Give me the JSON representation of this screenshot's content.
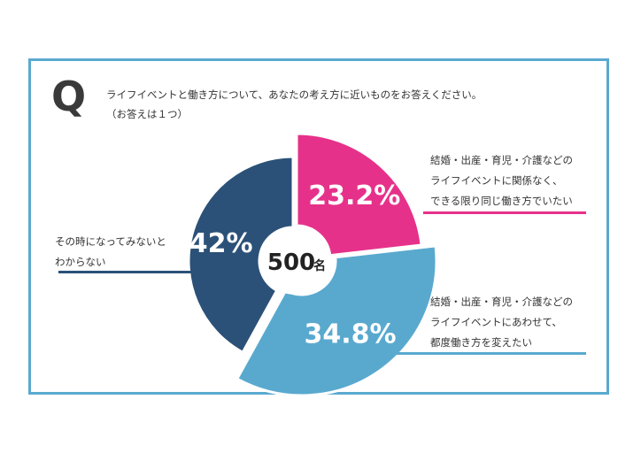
{
  "question": {
    "mark": "Q",
    "text": "ライフイベントと働き方について、あなたの考え方に近いものをお答えください。",
    "note": "（お答えは１つ）"
  },
  "center": {
    "count": "500",
    "unit": "名"
  },
  "colors": {
    "frame": "#5aa9cf",
    "pink": "#e6318a",
    "lightblue": "#59a9cf",
    "navy": "#2b5178"
  },
  "labels": {
    "pink": [
      "結婚・出産・育児・介護などの",
      "ライフイベントに関係なく、",
      "できる限り同じ働き方でいたい"
    ],
    "lightblue": [
      "結婚・出産・育児・介護などの",
      "ライフイベントにあわせて、",
      "都度働き方を変えたい"
    ],
    "navy": [
      "その時になってみないと",
      "わからない"
    ]
  },
  "chart_data": {
    "type": "pie",
    "title": "ライフイベントと働き方について、あなたの考え方に近いものをお答えください。",
    "total_label": "500名",
    "slices": [
      {
        "label": "結婚・出産・育児・介護などのライフイベントに関係なく、できる限り同じ働き方でいたい",
        "value": 23.2,
        "display": "23.2%",
        "color": "#e6318a"
      },
      {
        "label": "結婚・出産・育児・介護などのライフイベントにあわせて、都度働き方を変えたい",
        "value": 34.8,
        "display": "34.8%",
        "color": "#59a9cf"
      },
      {
        "label": "その時になってみないとわからない",
        "value": 42,
        "display": "42%",
        "color": "#2b5178"
      }
    ]
  }
}
